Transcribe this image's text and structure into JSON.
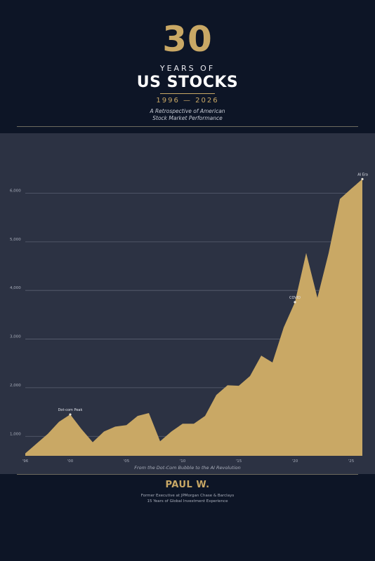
{
  "header": {
    "number": "30",
    "years_of": "YEARS OF",
    "title": "US STOCKS",
    "date_range": "1996 — 2026",
    "subtitle_line1": "A Retrospective of American",
    "subtitle_line2": "Stock Market Performance"
  },
  "chart_data": {
    "type": "area",
    "title": "",
    "xlabel": "",
    "ylabel": "",
    "x": [
      1996,
      1997,
      1998,
      1999,
      2000,
      2001,
      2002,
      2003,
      2004,
      2005,
      2006,
      2007,
      2008,
      2009,
      2010,
      2011,
      2012,
      2013,
      2014,
      2015,
      2016,
      2017,
      2018,
      2019,
      2020,
      2021,
      2022,
      2023,
      2024,
      2025,
      2026
    ],
    "values": [
      650,
      850,
      1050,
      1300,
      1450,
      1150,
      880,
      1100,
      1200,
      1230,
      1420,
      1480,
      900,
      1100,
      1260,
      1260,
      1420,
      1850,
      2050,
      2040,
      2240,
      2660,
      2520,
      3240,
      3760,
      4770,
      3850,
      4770,
      5880,
      6090,
      6290
    ],
    "xlim": [
      1996,
      2026
    ],
    "ylim": [
      600,
      6800
    ],
    "x_ticks": [
      1996,
      2000,
      2005,
      2010,
      2015,
      2020,
      2025
    ],
    "x_tick_labels": [
      "'96",
      "'00",
      "'05",
      "'10",
      "'15",
      "'20",
      "'25"
    ],
    "y_ticks": [
      1000,
      2000,
      3000,
      4000,
      5000,
      6000
    ],
    "y_tick_labels": [
      "1,000",
      "2,000",
      "3,000",
      "4,000",
      "5,000",
      "6,000"
    ],
    "grid": true,
    "annotations": [
      {
        "x": 2000,
        "y": 1450,
        "text": "Dot-com Peak"
      },
      {
        "x": 2020,
        "y": 3760,
        "text": "COVID"
      },
      {
        "x": 2026,
        "y": 6290,
        "text": "AI Era"
      }
    ],
    "colors": {
      "fill": "#c9a865",
      "grid": "#5a6072",
      "tick": "#a8adba",
      "panel": "#2c3243"
    }
  },
  "caption": "From the Dot-Com Bubble to the AI Revolution",
  "footer": {
    "author": "PAUL W.",
    "credential1": "Former Executive at JPMorgan Chase & Barclays",
    "credential2": "15 Years of Global Investment Experience"
  }
}
